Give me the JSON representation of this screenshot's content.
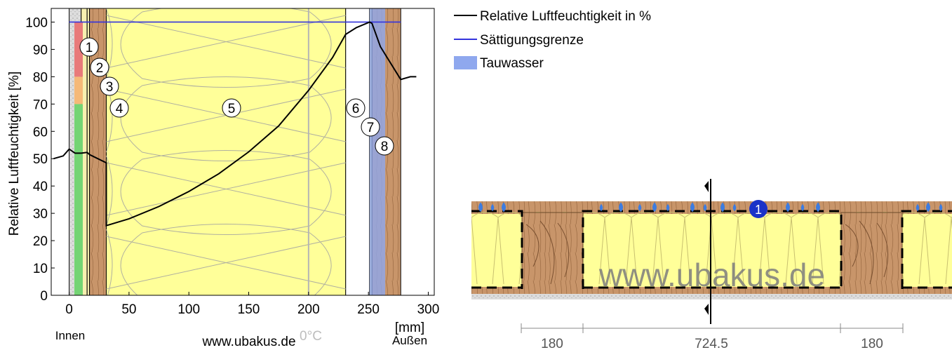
{
  "chart_data": {
    "type": "line",
    "ylabel": "Relative Luftfeuchtigkeit [%]",
    "xunit": "[mm]",
    "x_ticks": [
      0,
      50,
      100,
      150,
      200,
      250,
      300
    ],
    "y_ticks": [
      0,
      10,
      20,
      30,
      40,
      50,
      60,
      70,
      80,
      90,
      100
    ],
    "xlim": [
      -15,
      305
    ],
    "ylim": [
      0,
      105
    ],
    "inner_label": "Innen",
    "outer_label": "Außen",
    "watermark": "www.ubakus.de",
    "zero_c_label": "0°C",
    "zero_c_x": 200,
    "legend": {
      "rh": "Relative Luftfeuchtigkeit in %",
      "saturation": "Sättigungsgrenze",
      "condensate": "Tauwasser"
    },
    "colors": {
      "rh": "#000000",
      "saturation": "#3333dd",
      "condensate": "#8fa8ee",
      "insulation": "#ffff99",
      "wood": "#c8956a",
      "band_red": "#e87a7a",
      "band_orange": "#f5b978",
      "band_green": "#74d474"
    },
    "comfort_bands": [
      {
        "from": 0,
        "to": 70,
        "color": "#74d474"
      },
      {
        "from": 70,
        "to": 80,
        "color": "#f5b978"
      },
      {
        "from": 80,
        "to": 100,
        "color": "#e87a7a"
      }
    ],
    "layers": [
      {
        "n": "1",
        "from": 0,
        "to": 10,
        "material": "plaster"
      },
      {
        "n": "2",
        "from": 10,
        "to": 15,
        "material": "membrane"
      },
      {
        "n": "3",
        "from": 15,
        "to": 17,
        "material": "membrane"
      },
      {
        "n": "4",
        "from": 17,
        "to": 31,
        "material": "wood"
      },
      {
        "n": "5",
        "from": 31,
        "to": 231,
        "material": "insulation"
      },
      {
        "n": "6",
        "from": 231,
        "to": 251,
        "material": "air"
      },
      {
        "n": "7",
        "from": 251,
        "to": 253,
        "material": "membrane"
      },
      {
        "n": "8",
        "from": 253,
        "to": 277,
        "material": "wood"
      }
    ],
    "condensate_zone": [
      251,
      264
    ],
    "saturation": {
      "x": [
        0,
        277
      ],
      "y": [
        100,
        100
      ]
    },
    "series": [
      {
        "name": "Relative Luftfeuchtigkeit in %",
        "x": [
          -13,
          -5,
          0,
          5,
          10,
          15,
          17,
          31,
          31,
          50,
          75,
          100,
          125,
          150,
          175,
          200,
          220,
          231,
          240,
          251,
          253,
          260,
          277,
          285,
          290
        ],
        "y": [
          50,
          51,
          53.5,
          52,
          52,
          52.3,
          51.5,
          48.5,
          25.5,
          28,
          32.5,
          38,
          44.5,
          52.5,
          62,
          75,
          87,
          95.5,
          98,
          100,
          99.5,
          91,
          79,
          80,
          80
        ]
      }
    ]
  },
  "section": {
    "dims": [
      "180",
      "724.5",
      "180"
    ],
    "marker": "1",
    "watermark": "www.ubakus.de"
  }
}
